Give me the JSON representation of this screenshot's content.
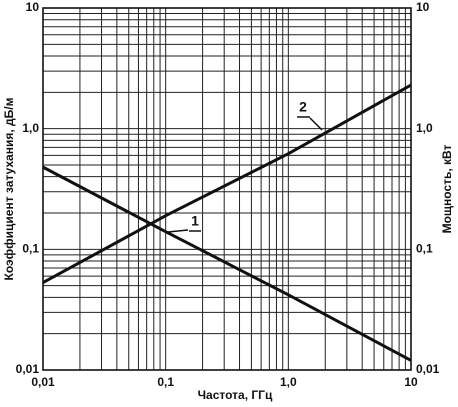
{
  "chart_data": {
    "type": "line",
    "x_label": "Частота, ГГц",
    "y_label": "Коэффициент затухания, дБ/м",
    "y2_label": "Мощность, кВт",
    "x": [
      0.01,
      0.1,
      1,
      10
    ],
    "series": [
      {
        "name": "1",
        "color": "#111111",
        "values": [
          0.48,
          0.14,
          0.042,
          0.012
        ]
      },
      {
        "name": "2",
        "color": "#111111",
        "axis": "y2",
        "values": [
          0.053,
          0.19,
          0.62,
          2.3
        ]
      }
    ],
    "log_x": true,
    "log_y": true,
    "grid": true,
    "xlim": [
      0.01,
      10
    ],
    "ylim": [
      0.01,
      10
    ],
    "y2lim": [
      0.01,
      10
    ],
    "xticks": [
      {
        "value": 0.01,
        "label": "0,01"
      },
      {
        "value": 0.1,
        "label": "0,1"
      },
      {
        "value": 1,
        "label": "1,0"
      },
      10
    ],
    "yticks": [
      {
        "value": 0.01,
        "label": "0,01"
      },
      {
        "value": 0.1,
        "label": "0,1"
      },
      {
        "value": 1,
        "label": "1,0"
      },
      10
    ],
    "y2ticks": [
      {
        "value": 0.01,
        "label": "0,01"
      },
      {
        "value": 0.1,
        "label": "0,1"
      },
      {
        "value": 1,
        "label": "1,0"
      },
      10
    ],
    "xminor": [
      0.02,
      0.03,
      0.04,
      0.05,
      0.06,
      0.07,
      0.08,
      0.09,
      0.2,
      0.3,
      0.4,
      0.5,
      0.6,
      0.7,
      0.8,
      0.9,
      2,
      3,
      4,
      5,
      6,
      7,
      8,
      9
    ],
    "yminor": [
      0.02,
      0.03,
      0.04,
      0.05,
      0.06,
      0.07,
      0.08,
      0.09,
      0.2,
      0.3,
      0.4,
      0.5,
      0.6,
      0.7,
      0.8,
      0.9,
      2,
      3,
      4,
      5,
      6,
      7,
      8,
      9
    ]
  }
}
